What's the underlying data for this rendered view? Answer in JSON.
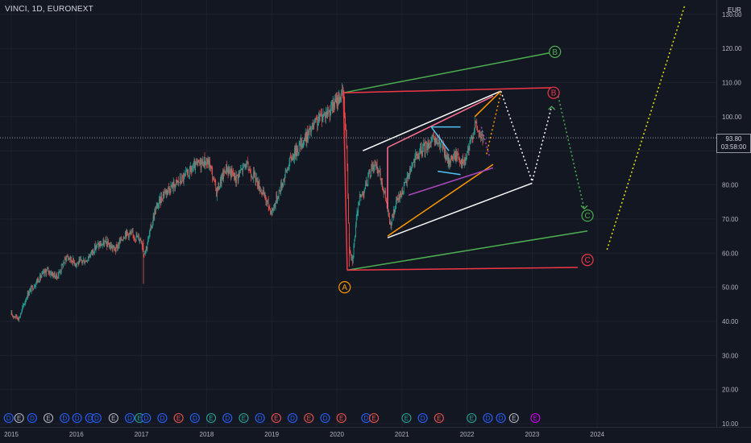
{
  "header": {
    "symbol_title": "VINCI, 1D, EURONEXT",
    "currency": "EUR"
  },
  "last_price": {
    "value": "93.80",
    "countdown": "03:58:00"
  },
  "colors": {
    "background": "#131722",
    "up": "#26a69a",
    "down": "#ef5350",
    "green_line": "#4caf50",
    "red_line": "#f23645",
    "white_line": "#ffffff",
    "orange": "#ff9800",
    "purple": "#ab47bc",
    "cyan": "#4fc3f7",
    "pink": "#ff6f91",
    "yellow": "#e6e600"
  },
  "chart_data": {
    "type": "candlestick",
    "title": "VINCI, 1D, EURONEXT",
    "ylim": [
      10,
      130
    ],
    "y_ticks": [
      "130.00",
      "120.00",
      "110.00",
      "100.00",
      "90.00",
      "80.00",
      "70.00",
      "60.00",
      "50.00",
      "40.00",
      "30.00",
      "20.00",
      "10.00"
    ],
    "x_ticks": [
      "2015",
      "2016",
      "2017",
      "2018",
      "2019",
      "2020",
      "2021",
      "2022",
      "2023",
      "2024"
    ],
    "price_path": [
      [
        2015.0,
        42
      ],
      [
        2015.12,
        41
      ],
      [
        2015.25,
        48
      ],
      [
        2015.4,
        52
      ],
      [
        2015.55,
        55
      ],
      [
        2015.7,
        53
      ],
      [
        2015.85,
        59
      ],
      [
        2016.0,
        57
      ],
      [
        2016.15,
        58
      ],
      [
        2016.3,
        62
      ],
      [
        2016.45,
        63
      ],
      [
        2016.6,
        61
      ],
      [
        2016.75,
        66
      ],
      [
        2016.9,
        65
      ],
      [
        2017.0,
        64
      ],
      [
        2017.03,
        60
      ],
      [
        2017.08,
        62
      ],
      [
        2017.2,
        72
      ],
      [
        2017.35,
        78
      ],
      [
        2017.5,
        80
      ],
      [
        2017.65,
        82
      ],
      [
        2017.8,
        85
      ],
      [
        2017.95,
        87
      ],
      [
        2018.05,
        86
      ],
      [
        2018.15,
        78
      ],
      [
        2018.3,
        85
      ],
      [
        2018.45,
        82
      ],
      [
        2018.6,
        86
      ],
      [
        2018.75,
        82
      ],
      [
        2018.9,
        76
      ],
      [
        2019.0,
        72
      ],
      [
        2019.15,
        80
      ],
      [
        2019.3,
        88
      ],
      [
        2019.45,
        92
      ],
      [
        2019.6,
        96
      ],
      [
        2019.75,
        100
      ],
      [
        2019.9,
        102
      ],
      [
        2020.05,
        106
      ],
      [
        2020.1,
        107
      ],
      [
        2020.15,
        92
      ],
      [
        2020.19,
        62
      ],
      [
        2020.24,
        58
      ],
      [
        2020.33,
        75
      ],
      [
        2020.45,
        80
      ],
      [
        2020.55,
        86
      ],
      [
        2020.65,
        84
      ],
      [
        2020.75,
        76
      ],
      [
        2020.82,
        68
      ],
      [
        2020.92,
        75
      ],
      [
        2021.05,
        80
      ],
      [
        2021.15,
        86
      ],
      [
        2021.3,
        90
      ],
      [
        2021.45,
        93
      ],
      [
        2021.6,
        92
      ],
      [
        2021.7,
        87
      ],
      [
        2021.85,
        89
      ],
      [
        2021.95,
        86
      ],
      [
        2022.05,
        92
      ],
      [
        2022.12,
        98
      ],
      [
        2022.2,
        94.5
      ],
      [
        2022.25,
        93.8
      ]
    ],
    "wave_labels": [
      {
        "label": "A",
        "color": "#ff9800",
        "year": 2020.12,
        "price": 50
      },
      {
        "label": "B",
        "color": "#4caf50",
        "year": 2023.35,
        "price": 119
      },
      {
        "label": "B",
        "color": "#f23645",
        "year": 2023.33,
        "price": 107
      },
      {
        "label": "C",
        "color": "#4caf50",
        "year": 2023.85,
        "price": 71
      },
      {
        "label": "C",
        "color": "#f23645",
        "year": 2023.85,
        "price": 58
      }
    ],
    "event_markers": [
      {
        "label": "D",
        "color": "#2962ff",
        "year": 2014.96
      },
      {
        "label": "E",
        "color": "#b2b5be",
        "year": 2015.12
      },
      {
        "label": "D",
        "color": "#2962ff",
        "year": 2015.32
      },
      {
        "label": "E",
        "color": "#b2b5be",
        "year": 2015.57
      },
      {
        "label": "D",
        "color": "#2962ff",
        "year": 2015.82
      },
      {
        "label": "D",
        "color": "#2962ff",
        "year": 2016.01
      },
      {
        "label": "D",
        "color": "#2962ff",
        "year": 2016.21
      },
      {
        "label": "D",
        "color": "#2962ff",
        "year": 2016.31
      },
      {
        "label": "E",
        "color": "#b2b5be",
        "year": 2016.57
      },
      {
        "label": "D",
        "color": "#2962ff",
        "year": 2016.82
      },
      {
        "label": "E",
        "color": "#26a69a",
        "year": 2016.97
      },
      {
        "label": "D",
        "color": "#2962ff",
        "year": 2017.07
      },
      {
        "label": "D",
        "color": "#2962ff",
        "year": 2017.32
      },
      {
        "label": "E",
        "color": "#ef5350",
        "year": 2017.57
      },
      {
        "label": "D",
        "color": "#2962ff",
        "year": 2017.82
      },
      {
        "label": "E",
        "color": "#26a69a",
        "year": 2018.07
      },
      {
        "label": "D",
        "color": "#2962ff",
        "year": 2018.32
      },
      {
        "label": "E",
        "color": "#26a69a",
        "year": 2018.57
      },
      {
        "label": "D",
        "color": "#2962ff",
        "year": 2018.82
      },
      {
        "label": "E",
        "color": "#ef5350",
        "year": 2019.07
      },
      {
        "label": "D",
        "color": "#2962ff",
        "year": 2019.32
      },
      {
        "label": "E",
        "color": "#ef5350",
        "year": 2019.57
      },
      {
        "label": "D",
        "color": "#2962ff",
        "year": 2019.82
      },
      {
        "label": "E",
        "color": "#ef5350",
        "year": 2020.07
      },
      {
        "label": "D",
        "color": "#2962ff",
        "year": 2020.45
      },
      {
        "label": "E",
        "color": "#ef5350",
        "year": 2020.57
      },
      {
        "label": "E",
        "color": "#26a69a",
        "year": 2021.07
      },
      {
        "label": "D",
        "color": "#2962ff",
        "year": 2021.32
      },
      {
        "label": "E",
        "color": "#ef5350",
        "year": 2021.57
      },
      {
        "label": "E",
        "color": "#26a69a",
        "year": 2022.07
      },
      {
        "label": "D",
        "color": "#2962ff",
        "year": 2022.32
      },
      {
        "label": "D",
        "color": "#2962ff",
        "year": 2022.52
      },
      {
        "label": "E",
        "color": "#b2b5be",
        "year": 2022.72
      },
      {
        "label": "E",
        "color": "#d500f9",
        "year": 2023.05
      }
    ],
    "drawings": [
      {
        "name": "green-upper-trendline",
        "color": "#4caf50",
        "width": 1.5,
        "dash": "",
        "points": [
          [
            2020.1,
            107
          ],
          [
            2023.35,
            119
          ]
        ]
      },
      {
        "name": "red-upper-line",
        "color": "#f23645",
        "width": 1.5,
        "dash": "",
        "points": [
          [
            2020.1,
            107
          ],
          [
            2023.3,
            108.5
          ]
        ]
      },
      {
        "name": "red-left-vertical",
        "color": "#f23645",
        "width": 1.5,
        "dash": "",
        "points": [
          [
            2020.1,
            107
          ],
          [
            2020.16,
            55
          ]
        ]
      },
      {
        "name": "green-lower-trendline",
        "color": "#4caf50",
        "width": 1.5,
        "dash": "",
        "points": [
          [
            2020.16,
            55
          ],
          [
            2023.85,
            66.5
          ]
        ]
      },
      {
        "name": "red-lower-line",
        "color": "#f23645",
        "width": 1.5,
        "dash": "",
        "points": [
          [
            2020.16,
            55
          ],
          [
            2023.7,
            55.8
          ]
        ]
      },
      {
        "name": "white-wedge-upper",
        "color": "#ffffff",
        "width": 1.5,
        "dash": "",
        "points": [
          [
            2020.4,
            90
          ],
          [
            2022.52,
            107.5
          ]
        ]
      },
      {
        "name": "white-wedge-lower",
        "color": "#ffffff",
        "width": 1.5,
        "dash": "",
        "points": [
          [
            2020.78,
            64.5
          ],
          [
            2023.0,
            80.5
          ]
        ]
      },
      {
        "name": "orange-lower-line",
        "color": "#ff9800",
        "width": 1.5,
        "dash": "",
        "points": [
          [
            2020.78,
            65
          ],
          [
            2022.4,
            86
          ]
        ]
      },
      {
        "name": "orange-upper-line",
        "color": "#ff9800",
        "width": 1.5,
        "dash": "",
        "points": [
          [
            2022.12,
            100
          ],
          [
            2022.52,
            107.5
          ]
        ]
      },
      {
        "name": "pink-channel-upper",
        "color": "#ff6f91",
        "width": 1.5,
        "dash": "",
        "points": [
          [
            2020.78,
            91
          ],
          [
            2022.4,
            106
          ]
        ]
      },
      {
        "name": "pink-channel-left",
        "color": "#ff6f91",
        "width": 1.5,
        "dash": "",
        "points": [
          [
            2020.78,
            91
          ],
          [
            2020.78,
            73
          ]
        ]
      },
      {
        "name": "purple-channel-lower",
        "color": "#ab47bc",
        "width": 1.5,
        "dash": "",
        "points": [
          [
            2021.1,
            77
          ],
          [
            2022.4,
            85
          ]
        ]
      },
      {
        "name": "cyan-upper",
        "color": "#4fc3f7",
        "width": 1.5,
        "dash": "",
        "points": [
          [
            2021.45,
            97
          ],
          [
            2021.9,
            97
          ]
        ]
      },
      {
        "name": "cyan-lower",
        "color": "#4fc3f7",
        "width": 1.5,
        "dash": "",
        "points": [
          [
            2021.55,
            84
          ],
          [
            2021.9,
            83
          ]
        ]
      },
      {
        "name": "cyan-left-diagonal",
        "color": "#4fc3f7",
        "width": 1.5,
        "dash": "",
        "points": [
          [
            2021.45,
            97
          ],
          [
            2021.72,
            90
          ]
        ]
      },
      {
        "name": "white-dotted-projection",
        "color": "#ffffff",
        "width": 1.5,
        "dash": "2,3",
        "points": [
          [
            2022.52,
            107.5
          ],
          [
            2023.0,
            81
          ],
          [
            2023.3,
            103
          ]
        ]
      },
      {
        "name": "orange-dotted-projection",
        "color": "#ff9800",
        "width": 1.5,
        "dash": "2,3",
        "points": [
          [
            2022.3,
            89
          ],
          [
            2022.52,
            107
          ]
        ]
      },
      {
        "name": "purple-dotted-projection",
        "color": "#ab47bc",
        "width": 1.5,
        "dash": "2,3",
        "points": [
          [
            2022.22,
            97
          ],
          [
            2022.35,
            88
          ]
        ]
      },
      {
        "name": "green-dotted-projection",
        "color": "#4caf50",
        "width": 1.5,
        "dash": "2,3",
        "points": [
          [
            2023.4,
            106
          ],
          [
            2023.8,
            73
          ]
        ]
      },
      {
        "name": "yellow-dotted-projection",
        "color": "#e6e600",
        "width": 1.5,
        "dash": "2,3",
        "points": [
          [
            2024.15,
            61
          ],
          [
            2025.35,
            133
          ]
        ]
      }
    ],
    "arrows": [
      {
        "color": "#4caf50",
        "year": 2023.3,
        "price": 103,
        "dir": "up"
      },
      {
        "color": "#4caf50",
        "year": 2023.8,
        "price": 73,
        "dir": "down"
      }
    ]
  }
}
